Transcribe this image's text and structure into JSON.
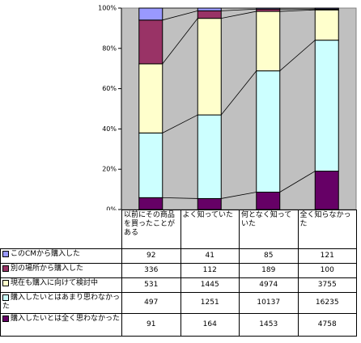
{
  "chart_data": {
    "type": "stacked-percent-bar",
    "categories": [
      "以前にその商品を買ったことがある",
      "よく知っていた",
      "何となく知っていた",
      "全く知らなかった"
    ],
    "series": [
      {
        "name": "このCMから購入した",
        "color": "#9999ff",
        "values": [
          92,
          41,
          85,
          121
        ]
      },
      {
        "name": "別の場所から購入した",
        "color": "#993366",
        "values": [
          336,
          112,
          189,
          100
        ]
      },
      {
        "name": "現在も購入に向けて検討中",
        "color": "#ffffcc",
        "values": [
          531,
          1445,
          4974,
          3755
        ]
      },
      {
        "name": "購入したいとはあまり思わなかった",
        "color": "#ccffff",
        "values": [
          497,
          1251,
          10137,
          16235
        ]
      },
      {
        "name": "購入したいとは全く思わなかった",
        "color": "#660066",
        "values": [
          91,
          164,
          1453,
          4758
        ]
      }
    ],
    "ylim": [
      0,
      100
    ],
    "yticks": [
      {
        "value": 0,
        "label": "0%"
      },
      {
        "value": 20,
        "label": "20%"
      },
      {
        "value": 40,
        "label": "40%"
      },
      {
        "value": 60,
        "label": "60%"
      },
      {
        "value": 80,
        "label": "80%"
      },
      {
        "value": 100,
        "label": "100%"
      }
    ],
    "plot_background": "#c0c0c0"
  }
}
